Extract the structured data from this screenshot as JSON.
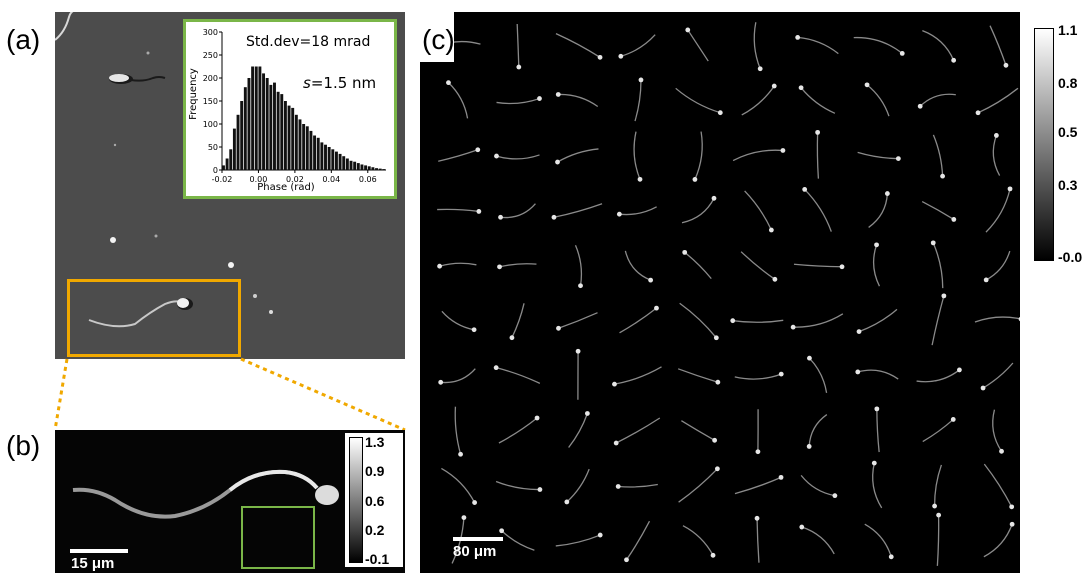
{
  "panels": {
    "a_label": "(a)",
    "b_label": "(b)",
    "c_label": "(c)"
  },
  "inset": {
    "std_dev_text": "Std.dev=18 mrad",
    "s_symbol": "s",
    "s_value": "=1.5 nm",
    "ylabel": "Frequency",
    "xlabel": "Phase (rad)",
    "yticks": [
      "0",
      "50",
      "100",
      "150",
      "200",
      "250",
      "300"
    ],
    "xticks": [
      "-0.02",
      "0.00",
      "0.02",
      "0.04",
      "0.06"
    ]
  },
  "chart_data": {
    "type": "bar",
    "title": "",
    "xlabel": "Phase (rad)",
    "ylabel": "Frequency",
    "xlim": [
      -0.02,
      0.07
    ],
    "ylim": [
      0,
      300
    ],
    "x": [
      -0.02,
      -0.018,
      -0.016,
      -0.014,
      -0.012,
      -0.01,
      -0.008,
      -0.006,
      -0.004,
      -0.002,
      0.0,
      0.002,
      0.004,
      0.006,
      0.008,
      0.01,
      0.012,
      0.014,
      0.016,
      0.018,
      0.02,
      0.022,
      0.024,
      0.026,
      0.028,
      0.03,
      0.032,
      0.034,
      0.036,
      0.038,
      0.04,
      0.042,
      0.044,
      0.046,
      0.048,
      0.05,
      0.052,
      0.054,
      0.056,
      0.058,
      0.06,
      0.062,
      0.064,
      0.066,
      0.068
    ],
    "values": [
      10,
      25,
      45,
      90,
      120,
      150,
      180,
      200,
      225,
      225,
      225,
      210,
      200,
      185,
      190,
      170,
      165,
      150,
      140,
      135,
      120,
      110,
      100,
      95,
      85,
      75,
      70,
      60,
      55,
      50,
      45,
      40,
      35,
      30,
      25,
      20,
      18,
      15,
      12,
      10,
      8,
      6,
      4,
      3,
      2
    ]
  },
  "panel_b": {
    "colorbar_ticks": [
      "1.3",
      "0.9",
      "0.6",
      "0.2",
      "-0.1"
    ],
    "scalebar_label": "15 μm"
  },
  "panel_c": {
    "scalebar_label": "80 μm",
    "colorbar_ticks": [
      "1.1",
      "0.8",
      "0.5",
      "0.3",
      "-0.0"
    ]
  },
  "colors": {
    "inset_border": "#7ab648",
    "roi_a": "#f0a800",
    "roi_b": "#7ab648",
    "panel_a_bg": "#4c4c4c"
  }
}
